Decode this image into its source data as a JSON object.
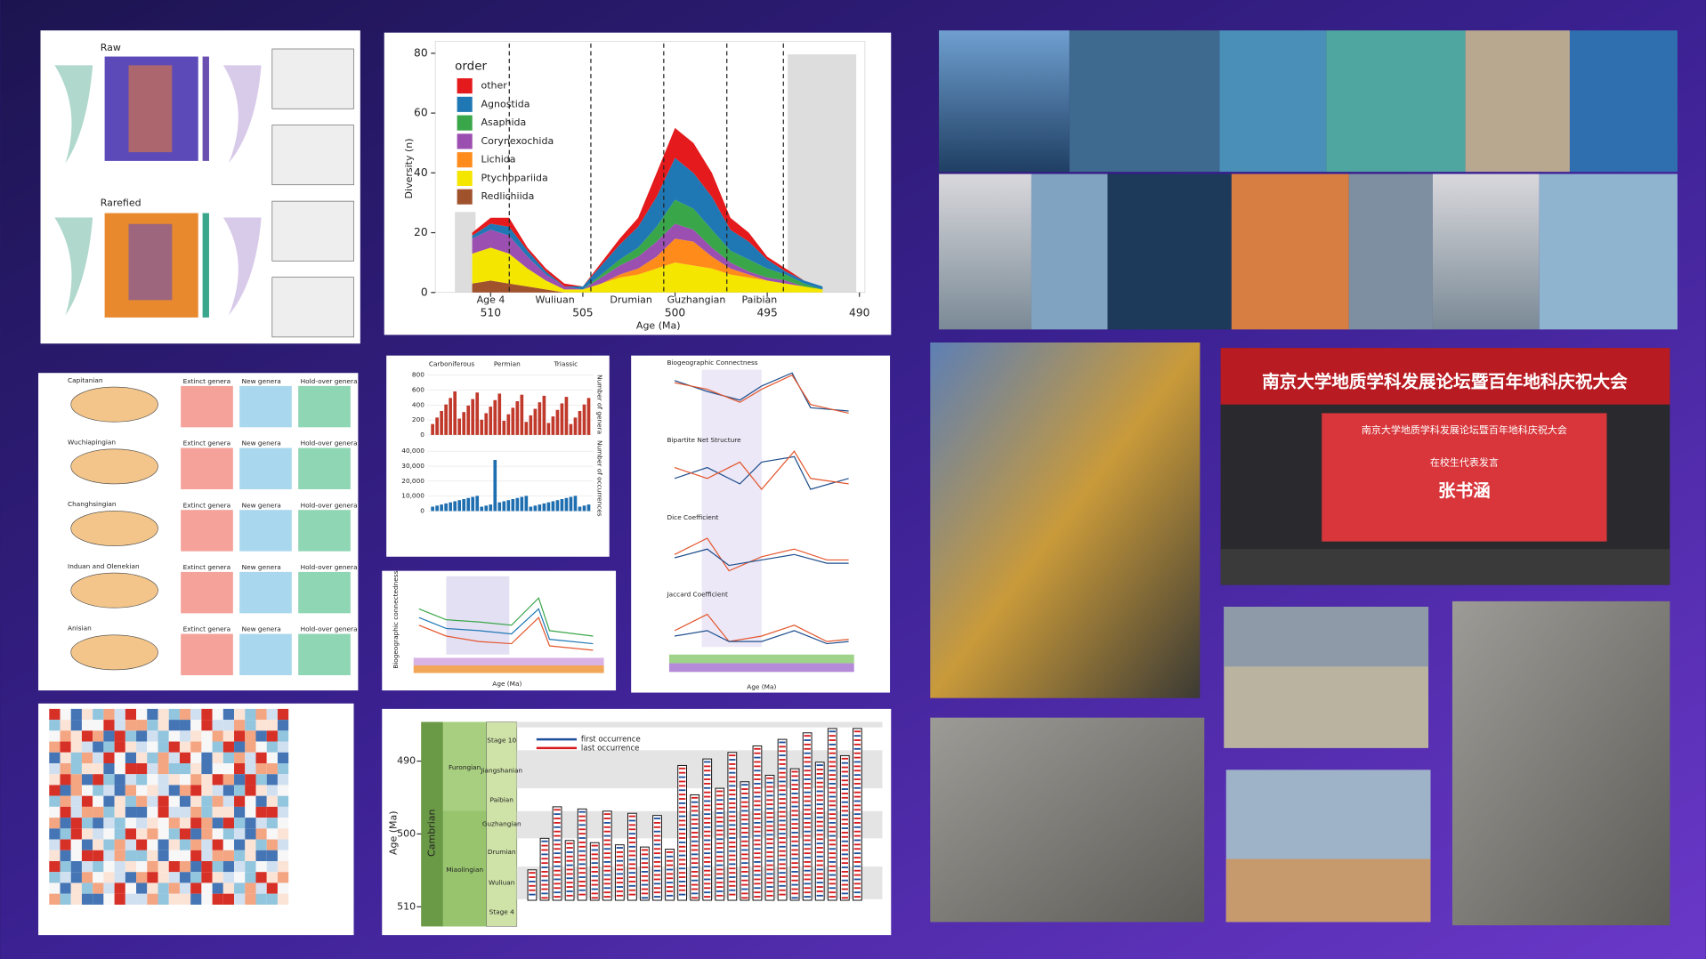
{
  "diversity_chart": {
    "type": "area",
    "y_label": "Diversity (n)",
    "x_label": "Age (Ma)",
    "legend_title": "order",
    "stages": [
      "Age 4",
      "Wuliuan",
      "Drumian",
      "Guzhangian",
      "Paibian"
    ],
    "x": [
      511,
      510,
      509,
      508,
      507,
      506,
      505,
      504,
      503,
      502,
      501,
      500,
      499,
      498,
      497,
      496,
      495,
      494,
      493,
      492
    ],
    "xlim": [
      513,
      489.7
    ],
    "xticks": [
      510,
      505,
      500,
      495,
      490
    ],
    "ylim": [
      0,
      84
    ],
    "yticks": [
      0,
      20,
      40,
      60,
      80
    ],
    "series": [
      {
        "name": "Redlichiida",
        "color": "#a0522d",
        "values": [
          3,
          4,
          3,
          2,
          1,
          0,
          0,
          0,
          0,
          0,
          0,
          0,
          0,
          0,
          0,
          0,
          0,
          0,
          0,
          0
        ]
      },
      {
        "name": "Ptychopariida",
        "color": "#f5e600",
        "values": [
          10,
          11,
          10,
          6,
          3,
          1,
          1,
          3,
          5,
          6,
          8,
          10,
          9,
          8,
          6,
          5,
          4,
          3,
          2,
          1
        ]
      },
      {
        "name": "Lichida",
        "color": "#ff8c1a",
        "values": [
          0,
          0,
          0,
          0,
          0,
          0,
          0,
          0,
          1,
          2,
          4,
          8,
          8,
          4,
          2,
          1,
          0,
          0,
          0,
          0
        ]
      },
      {
        "name": "Corynexochida",
        "color": "#9b4fb0",
        "values": [
          5,
          6,
          6,
          4,
          2,
          1,
          0,
          2,
          3,
          4,
          5,
          5,
          4,
          3,
          2,
          1,
          1,
          1,
          0,
          0
        ]
      },
      {
        "name": "Asaphida",
        "color": "#3aa64a",
        "values": [
          0,
          0,
          0,
          0,
          0,
          0,
          0,
          1,
          2,
          3,
          5,
          8,
          7,
          6,
          4,
          4,
          3,
          2,
          1,
          0
        ]
      },
      {
        "name": "Agnostida",
        "color": "#1f78b4",
        "values": [
          1,
          2,
          3,
          2,
          1,
          0,
          1,
          3,
          5,
          7,
          10,
          14,
          12,
          11,
          7,
          6,
          3,
          1,
          1,
          1
        ]
      },
      {
        "name": "other",
        "color": "#e41a1c",
        "values": [
          1,
          2,
          3,
          1,
          1,
          1,
          0,
          1,
          2,
          3,
          8,
          10,
          10,
          8,
          4,
          3,
          1,
          1,
          0,
          0
        ]
      }
    ]
  },
  "bar_panel": {
    "periods": [
      "Carboniferous",
      "Permian",
      "Triassic"
    ],
    "y_labels": [
      "Number of genera",
      "Number of occurrences"
    ],
    "genera_ticks": [
      0,
      200,
      400,
      600,
      800
    ],
    "occurrence_ticks": [
      0,
      {
        "value": 10000,
        "label": "10,000"
      },
      {
        "value": 20000,
        "label": "20,000"
      },
      {
        "value": 30000,
        "label": "30,000"
      },
      {
        "value": 40000,
        "label": "40,000"
      }
    ]
  },
  "network_panel": {
    "titles": [
      "Biogeographic Connectness",
      "Bipartite Net Structure",
      "Dice Coefficient",
      "Jaccard Coefficient"
    ],
    "x_label": "Age (Ma)"
  },
  "connect_panel": {
    "y_label": "Biogeographic connectedness",
    "x_label": "Age (Ma)"
  },
  "strat_panel": {
    "y_label": "Age (Ma)",
    "system": "Cambrian",
    "series": [
      "Furongian",
      "Miaolingian"
    ],
    "stages": [
      "Stage 10",
      "Jiangshanian",
      "Paibian",
      "Guzhangian",
      "Drumian",
      "Wuliuan",
      "Stage 4"
    ],
    "yticks": [
      490,
      500,
      510
    ],
    "legend": [
      "first occurrence",
      "last occurrence"
    ]
  },
  "map_panel": {
    "periods": [
      "Capitanian",
      "Wuchiapingian",
      "Changhsingian",
      "Induan and Olenekian",
      "Anisian"
    ],
    "columns": [
      "Extinct genera",
      "New genera",
      "Hold-over genera"
    ]
  },
  "heatmap_panel": {
    "titles": [
      "Raw",
      "Rarefied"
    ]
  },
  "banner": {
    "title": "南京大学地质学科发展论坛暨百年地科庆祝大会",
    "subtitle": "在校生代表发言",
    "name": "张书涵"
  }
}
